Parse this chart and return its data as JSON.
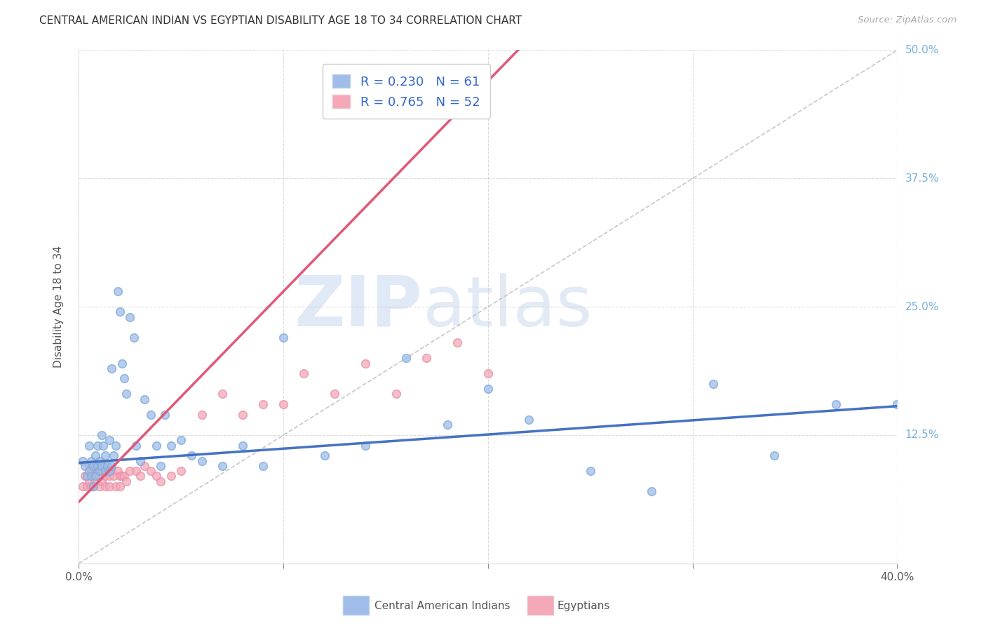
{
  "title": "CENTRAL AMERICAN INDIAN VS EGYPTIAN DISABILITY AGE 18 TO 34 CORRELATION CHART",
  "source": "Source: ZipAtlas.com",
  "ylabel": "Disability Age 18 to 34",
  "xlim": [
    0.0,
    0.4
  ],
  "ylim": [
    0.0,
    0.5
  ],
  "xticks": [
    0.0,
    0.1,
    0.2,
    0.3,
    0.4
  ],
  "yticks": [
    0.0,
    0.125,
    0.25,
    0.375,
    0.5
  ],
  "blue_R": 0.23,
  "blue_N": 61,
  "pink_R": 0.765,
  "pink_N": 52,
  "legend_label_blue": "Central American Indians",
  "legend_label_pink": "Egyptians",
  "dot_size": 70,
  "blue_color": "#a0bce8",
  "pink_color": "#f4a8b8",
  "blue_edge_color": "#7aaad8",
  "pink_edge_color": "#e890a8",
  "blue_line_color": "#4472c4",
  "pink_line_color": "#e05878",
  "grid_color": "#cccccc",
  "watermark_zip": "ZIP",
  "watermark_atlas": "atlas",
  "title_color": "#333333",
  "axis_label_color": "#555555",
  "right_tick_color": "#7ab0e0",
  "legend_text_color": "#3366cc",
  "blue_slope": 0.138,
  "blue_intercept": 0.098,
  "pink_slope": 2.05,
  "pink_intercept": 0.06,
  "blue_x": [
    0.002,
    0.003,
    0.004,
    0.005,
    0.005,
    0.006,
    0.006,
    0.007,
    0.007,
    0.008,
    0.008,
    0.009,
    0.009,
    0.01,
    0.01,
    0.011,
    0.011,
    0.012,
    0.013,
    0.013,
    0.014,
    0.015,
    0.015,
    0.016,
    0.016,
    0.017,
    0.018,
    0.019,
    0.02,
    0.021,
    0.022,
    0.023,
    0.025,
    0.027,
    0.028,
    0.03,
    0.032,
    0.035,
    0.038,
    0.04,
    0.042,
    0.045,
    0.05,
    0.055,
    0.06,
    0.07,
    0.08,
    0.09,
    0.1,
    0.12,
    0.14,
    0.16,
    0.18,
    0.2,
    0.22,
    0.25,
    0.28,
    0.31,
    0.34,
    0.37,
    0.4
  ],
  "blue_y": [
    0.1,
    0.095,
    0.085,
    0.115,
    0.09,
    0.1,
    0.085,
    0.095,
    0.075,
    0.105,
    0.085,
    0.095,
    0.115,
    0.1,
    0.09,
    0.125,
    0.095,
    0.115,
    0.105,
    0.09,
    0.095,
    0.12,
    0.09,
    0.19,
    0.095,
    0.105,
    0.115,
    0.265,
    0.245,
    0.195,
    0.18,
    0.165,
    0.24,
    0.22,
    0.115,
    0.1,
    0.16,
    0.145,
    0.115,
    0.095,
    0.145,
    0.115,
    0.12,
    0.105,
    0.1,
    0.095,
    0.115,
    0.095,
    0.22,
    0.105,
    0.115,
    0.2,
    0.135,
    0.17,
    0.14,
    0.09,
    0.07,
    0.175,
    0.105,
    0.155,
    0.155
  ],
  "pink_x": [
    0.002,
    0.003,
    0.004,
    0.005,
    0.005,
    0.006,
    0.006,
    0.007,
    0.007,
    0.008,
    0.008,
    0.009,
    0.01,
    0.01,
    0.011,
    0.011,
    0.012,
    0.013,
    0.013,
    0.014,
    0.015,
    0.015,
    0.016,
    0.017,
    0.018,
    0.019,
    0.02,
    0.02,
    0.021,
    0.022,
    0.023,
    0.025,
    0.028,
    0.03,
    0.032,
    0.035,
    0.038,
    0.04,
    0.045,
    0.05,
    0.06,
    0.07,
    0.08,
    0.09,
    0.1,
    0.11,
    0.125,
    0.14,
    0.155,
    0.17,
    0.185,
    0.2
  ],
  "pink_y": [
    0.075,
    0.085,
    0.075,
    0.095,
    0.08,
    0.09,
    0.075,
    0.085,
    0.075,
    0.095,
    0.08,
    0.09,
    0.085,
    0.075,
    0.09,
    0.08,
    0.095,
    0.085,
    0.075,
    0.09,
    0.085,
    0.075,
    0.09,
    0.085,
    0.075,
    0.09,
    0.085,
    0.075,
    0.085,
    0.085,
    0.08,
    0.09,
    0.09,
    0.085,
    0.095,
    0.09,
    0.085,
    0.08,
    0.085,
    0.09,
    0.145,
    0.165,
    0.145,
    0.155,
    0.155,
    0.185,
    0.165,
    0.195,
    0.165,
    0.2,
    0.215,
    0.185
  ]
}
